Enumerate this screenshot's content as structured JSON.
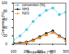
{
  "chart_data": {
    "type": "line",
    "x_label": "Temperature (°C)",
    "y_label": "Conversion (%)",
    "x": [
      100,
      150,
      200,
      250,
      300,
      350,
      400,
      450,
      500
    ],
    "series": [
      {
        "name": "conversion (%)",
        "color": "#4fc3e8",
        "marker": "square",
        "line_style": "dashed",
        "values": [
          10,
          20,
          35,
          55,
          70,
          82,
          88,
          72,
          78
        ]
      },
      {
        "name": "NH3",
        "color": "#000000",
        "marker": "circle",
        "line_style": "solid",
        "values": [
          2,
          3,
          5,
          10,
          18,
          26,
          32,
          20,
          12
        ]
      },
      {
        "name": "N2O",
        "color": "#f08a24",
        "marker": "triangle",
        "line_style": "dashed",
        "values": [
          0,
          1,
          3,
          8,
          15,
          22,
          28,
          18,
          8
        ]
      }
    ],
    "xlim": [
      100,
      500
    ],
    "xticks": [
      100,
      200,
      300,
      400,
      500
    ],
    "ylim": [
      0,
      100
    ],
    "yticks": [
      0,
      20,
      40,
      60,
      80,
      100
    ],
    "legend": "top-left"
  }
}
